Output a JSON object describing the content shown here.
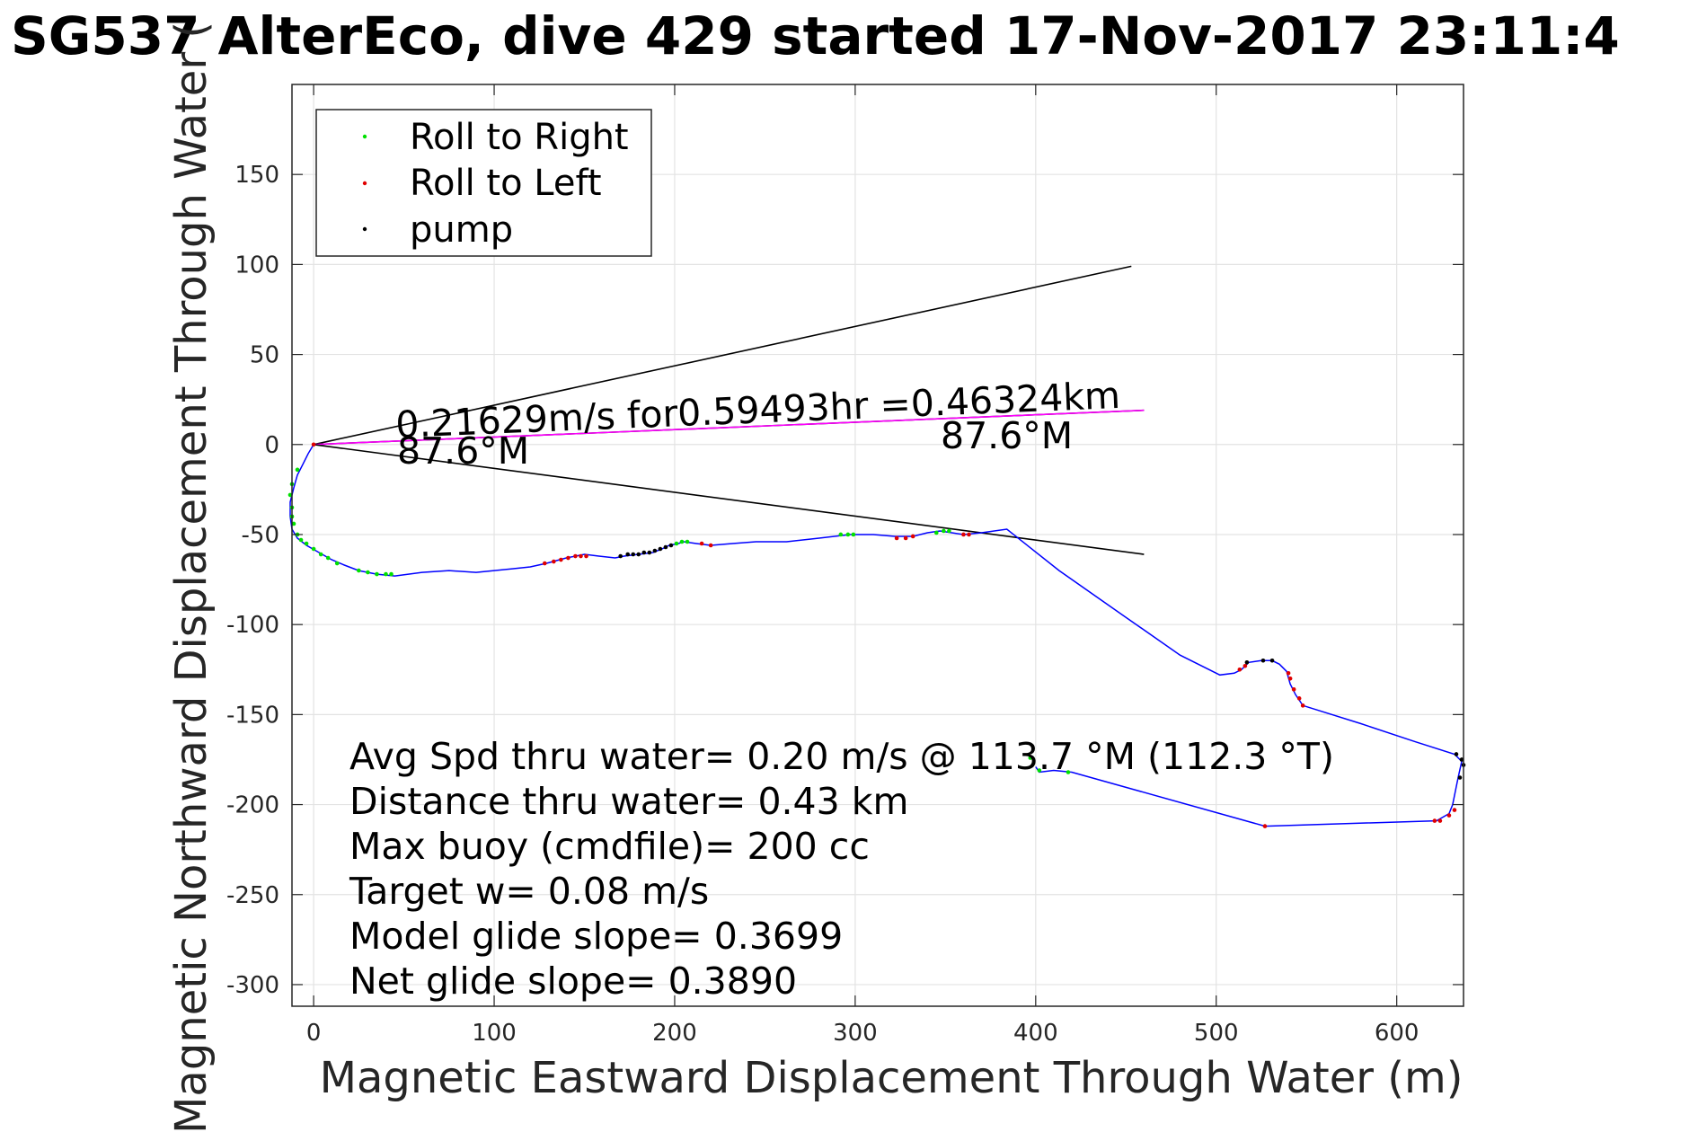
{
  "chart_data": {
    "type": "scatter",
    "title": "SG537 AlterEco, dive 429 started 17-Nov-2017 23:11:4",
    "xlabel": "Magnetic Eastward Displacement Through Water (m)",
    "ylabel": "Magnetic Northward Displacement Through Water (",
    "xlim": [
      -12,
      637
    ],
    "ylim": [
      -312,
      200
    ],
    "x_ticks": [
      0,
      100,
      200,
      300,
      400,
      500,
      600
    ],
    "y_ticks": [
      150,
      100,
      50,
      0,
      -50,
      -100,
      -150,
      -200,
      -250,
      -300
    ],
    "grid": true,
    "legend_position": "top-left",
    "legend": [
      {
        "label": "Roll to Right",
        "color": "#00e000"
      },
      {
        "label": "Roll to Left",
        "color": "#e00000"
      },
      {
        "label": "pump",
        "color": "#000000"
      }
    ],
    "track_color": "#0000ff",
    "track": [
      [
        0,
        0
      ],
      [
        -3,
        -5
      ],
      [
        -6,
        -11
      ],
      [
        -9,
        -17
      ],
      [
        -11,
        -24
      ],
      [
        -13,
        -32
      ],
      [
        -13,
        -40
      ],
      [
        -12,
        -47
      ],
      [
        -9,
        -52
      ],
      [
        -4,
        -56
      ],
      [
        3,
        -60
      ],
      [
        10,
        -64
      ],
      [
        17,
        -67
      ],
      [
        25,
        -70
      ],
      [
        35,
        -72
      ],
      [
        45,
        -73
      ],
      [
        60,
        -71
      ],
      [
        75,
        -70
      ],
      [
        90,
        -71
      ],
      [
        100,
        -70
      ],
      [
        110,
        -69
      ],
      [
        120,
        -68
      ],
      [
        129,
        -66
      ],
      [
        140,
        -63
      ],
      [
        150,
        -61
      ],
      [
        158,
        -62
      ],
      [
        167,
        -63
      ],
      [
        172,
        -62
      ],
      [
        180,
        -61
      ],
      [
        188,
        -60
      ],
      [
        193,
        -58
      ],
      [
        197,
        -56
      ],
      [
        202,
        -55
      ],
      [
        205,
        -54
      ],
      [
        212,
        -55
      ],
      [
        220,
        -56
      ],
      [
        232,
        -55
      ],
      [
        245,
        -54
      ],
      [
        262,
        -54
      ],
      [
        280,
        -52
      ],
      [
        297,
        -50
      ],
      [
        310,
        -50
      ],
      [
        322,
        -51
      ],
      [
        332,
        -51
      ],
      [
        340,
        -49
      ],
      [
        347,
        -48
      ],
      [
        360,
        -50
      ],
      [
        370,
        -49
      ],
      [
        384,
        -47
      ],
      [
        413,
        -70
      ],
      [
        450,
        -96
      ],
      [
        480,
        -117
      ],
      [
        502,
        -128
      ],
      [
        510,
        -127
      ],
      [
        514,
        -125
      ],
      [
        518,
        -121
      ],
      [
        525,
        -120
      ],
      [
        531,
        -120
      ],
      [
        535,
        -122
      ],
      [
        539,
        -126
      ],
      [
        541,
        -133
      ],
      [
        544,
        -139
      ],
      [
        548,
        -145
      ],
      [
        580,
        -155
      ],
      [
        610,
        -165
      ],
      [
        632,
        -172
      ],
      [
        636,
        -176
      ],
      [
        634,
        -185
      ],
      [
        631,
        -200
      ],
      [
        629,
        -205
      ],
      [
        622,
        -209
      ],
      [
        527,
        -212
      ],
      [
        420,
        -182
      ],
      [
        410,
        -181
      ],
      [
        402,
        -182
      ],
      [
        400,
        -179
      ]
    ],
    "markers": {
      "roll_right": [
        [
          -12,
          -40
        ],
        [
          -12,
          -35
        ],
        [
          -11,
          -44
        ],
        [
          -9,
          -50
        ],
        [
          -7,
          -53
        ],
        [
          -4,
          -55
        ],
        [
          0,
          -58
        ],
        [
          4,
          -61
        ],
        [
          8,
          -63
        ],
        [
          13,
          -66
        ],
        [
          25,
          -70
        ],
        [
          30,
          -71
        ],
        [
          35,
          -72
        ],
        [
          40,
          -72
        ],
        [
          43,
          -72
        ],
        [
          201,
          -55
        ],
        [
          204,
          -54
        ],
        [
          207,
          -54
        ],
        [
          292,
          -50
        ],
        [
          296,
          -50
        ],
        [
          299,
          -50
        ],
        [
          345,
          -49
        ],
        [
          349,
          -48
        ],
        [
          352,
          -48
        ],
        [
          397,
          -174
        ],
        [
          402,
          -181
        ],
        [
          418,
          -182
        ],
        [
          -13,
          -28
        ],
        [
          -12,
          -22
        ],
        [
          -9,
          -14
        ]
      ],
      "roll_left": [
        [
          128,
          -66
        ],
        [
          133,
          -65
        ],
        [
          137,
          -64
        ],
        [
          141,
          -63
        ],
        [
          145,
          -62
        ],
        [
          148,
          -62
        ],
        [
          151,
          -62
        ],
        [
          215,
          -55
        ],
        [
          220,
          -56
        ],
        [
          323,
          -52
        ],
        [
          328,
          -52
        ],
        [
          332,
          -51
        ],
        [
          360,
          -50
        ],
        [
          363,
          -50
        ],
        [
          513,
          -125
        ],
        [
          516,
          -123
        ],
        [
          540,
          -127
        ],
        [
          541,
          -130
        ],
        [
          543,
          -136
        ],
        [
          546,
          -141
        ],
        [
          548,
          -145
        ],
        [
          527,
          -212
        ],
        [
          621,
          -209
        ],
        [
          624,
          -209
        ],
        [
          629,
          -206
        ],
        [
          632,
          -203
        ],
        [
          0,
          0
        ]
      ],
      "pump": [
        [
          170,
          -62
        ],
        [
          174,
          -61
        ],
        [
          177,
          -61
        ],
        [
          180,
          -61
        ],
        [
          183,
          -60
        ],
        [
          186,
          -60
        ],
        [
          189,
          -59
        ],
        [
          192,
          -58
        ],
        [
          195,
          -57
        ],
        [
          198,
          -56
        ],
        [
          517,
          -121
        ],
        [
          526,
          -120
        ],
        [
          531,
          -120
        ],
        [
          633,
          -172
        ],
        [
          636,
          -175
        ],
        [
          637,
          -178
        ],
        [
          635,
          -185
        ]
      ]
    },
    "reference_lines": [
      {
        "color": "#000000",
        "from": [
          0,
          0
        ],
        "to": [
          453,
          99
        ]
      },
      {
        "color": "#000000",
        "from": [
          0,
          0
        ],
        "to": [
          460,
          19
        ]
      },
      {
        "color": "#ff00ff",
        "from": [
          0,
          0
        ],
        "to": [
          460,
          19
        ]
      },
      {
        "color": "#000000",
        "from": [
          0,
          0
        ],
        "to": [
          460,
          -61
        ]
      }
    ],
    "annotations": [
      {
        "text": "0.21629m/s for0.59493hr =0.46324km"
      },
      {
        "text": "87.6°M"
      },
      {
        "text": "87.6°M"
      }
    ],
    "stats_text": [
      "Avg Spd thru water=  0.20 m/s @ 113.7 °M (112.3 °T)",
      "Distance thru water=  0.43 km",
      "Max buoy (cmdfile)= 200 cc",
      "Target w= 0.08 m/s",
      "Model glide slope= 0.3699",
      "Net glide slope= 0.3890"
    ]
  }
}
